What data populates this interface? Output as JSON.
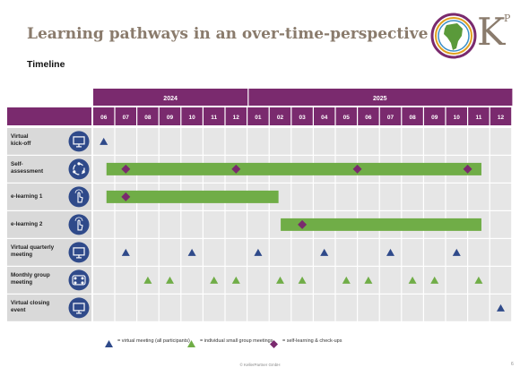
{
  "header": {
    "title": "Learning pathways in an over-time-perspective",
    "subtitle": "Timeline",
    "logo_letter": "K",
    "logo_superscript": "P"
  },
  "colors": {
    "purple": "#7a2a6e",
    "green": "#70ad47",
    "navy": "#2f4a8a",
    "label_bg": "#d9d9d9",
    "cell_bg": "#e6e6e6",
    "logo_text": "#8a7b6c"
  },
  "timeline": {
    "years": [
      {
        "label": "2024",
        "start": 0,
        "span": 7
      },
      {
        "label": "2025",
        "start": 7,
        "span": 12
      }
    ],
    "months": [
      "06",
      "07",
      "08",
      "09",
      "10",
      "11",
      "12",
      "01",
      "02",
      "03",
      "04",
      "05",
      "06",
      "07",
      "08",
      "09",
      "10",
      "11",
      "12"
    ],
    "rows": [
      {
        "label": "Virtual kick-off",
        "icon": "monitor-icon",
        "bars": [],
        "diamonds": [],
        "blue_triangles": [
          0
        ],
        "green_triangles": []
      },
      {
        "label": "Self-assessment",
        "icon": "cycle-icon",
        "bars": [
          [
            0.6,
            17.6
          ]
        ],
        "diamonds": [
          1,
          6,
          11.5,
          16.5
        ],
        "blue_triangles": [],
        "green_triangles": []
      },
      {
        "label": "e-learning 1",
        "icon": "touch-icon",
        "bars": [
          [
            0.6,
            8.4
          ]
        ],
        "diamonds": [
          1
        ],
        "blue_triangles": [],
        "green_triangles": []
      },
      {
        "label": "e-learning 2",
        "icon": "touch-icon",
        "bars": [
          [
            8.5,
            17.6
          ]
        ],
        "diamonds": [
          9
        ],
        "blue_triangles": [],
        "green_triangles": []
      },
      {
        "label": "Virtual quarterly meeting",
        "icon": "monitor-icon",
        "bars": [],
        "diamonds": [],
        "blue_triangles": [
          1,
          4,
          7,
          10,
          13,
          16
        ],
        "green_triangles": []
      },
      {
        "label": "Monthly group meeting",
        "icon": "group-icon",
        "bars": [],
        "diamonds": [],
        "blue_triangles": [],
        "green_triangles": [
          2,
          3,
          5,
          6,
          8,
          9,
          11,
          12,
          14,
          15,
          17
        ]
      },
      {
        "label": "Virtual closing event",
        "icon": "monitor-icon",
        "bars": [],
        "diamonds": [],
        "blue_triangles": [
          18
        ],
        "green_triangles": []
      }
    ]
  },
  "legend": {
    "virtual": "= virtual meeting (all participants)",
    "group": "= individual small group meetings",
    "self": "= self-learning & check-ups"
  },
  "footer": {
    "copyright": "© KellerPartner GmbH",
    "page": "6"
  }
}
